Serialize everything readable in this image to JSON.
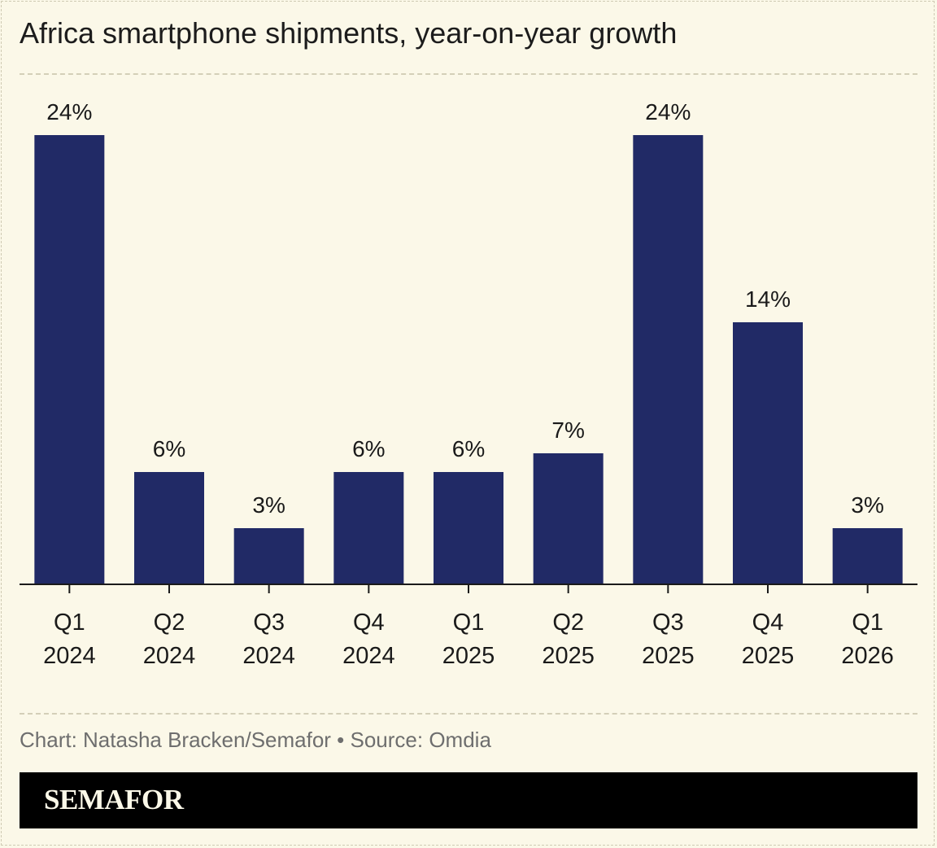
{
  "chart_data": {
    "type": "bar",
    "title": "Africa smartphone shipments, year-on-year growth",
    "categories": [
      [
        "Q1",
        "2024"
      ],
      [
        "Q2",
        "2024"
      ],
      [
        "Q3",
        "2024"
      ],
      [
        "Q4",
        "2024"
      ],
      [
        "Q1",
        "2025"
      ],
      [
        "Q2",
        "2025"
      ],
      [
        "Q3",
        "2025"
      ],
      [
        "Q4",
        "2025"
      ],
      [
        "Q1",
        "2026"
      ]
    ],
    "values": [
      24,
      6,
      3,
      6,
      6,
      7,
      24,
      14,
      3
    ],
    "data_labels": [
      "24%",
      "6%",
      "3%",
      "6%",
      "6%",
      "7%",
      "24%",
      "14%",
      "3%"
    ],
    "unit": "%",
    "xlabel": "",
    "ylabel": "",
    "ylim": [
      0,
      24
    ],
    "grid": false,
    "bar_color": "#212a66"
  },
  "footer": {
    "source": "Chart: Natasha Bracken/Semafor • Source: Omdia",
    "brand": "SEMAFOR"
  },
  "colors": {
    "background": "#fbf8e8",
    "bar": "#212a66",
    "brand_bar": "#000000",
    "source_text": "#6e6e6e"
  }
}
